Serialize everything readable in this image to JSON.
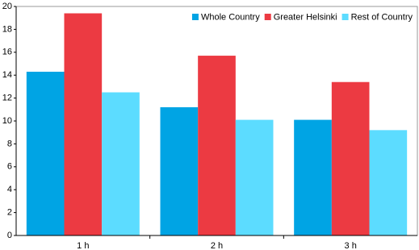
{
  "chart_data": {
    "type": "bar",
    "categories": [
      "1 h",
      "2 h",
      "3 h"
    ],
    "series": [
      {
        "name": "Whole Country",
        "color": "#00a4e4",
        "values": [
          14.3,
          11.2,
          10.1
        ]
      },
      {
        "name": "Greater Helsinki",
        "color": "#ec3a42",
        "values": [
          19.4,
          15.7,
          13.4
        ]
      },
      {
        "name": "Rest of Country",
        "color": "#5cdcff",
        "values": [
          12.5,
          10.1,
          9.2
        ]
      }
    ],
    "ylim": [
      0,
      20
    ],
    "yticks": [
      0,
      2,
      4,
      6,
      8,
      10,
      12,
      14,
      16,
      18,
      20
    ],
    "grid": false,
    "legend": "top-right"
  }
}
